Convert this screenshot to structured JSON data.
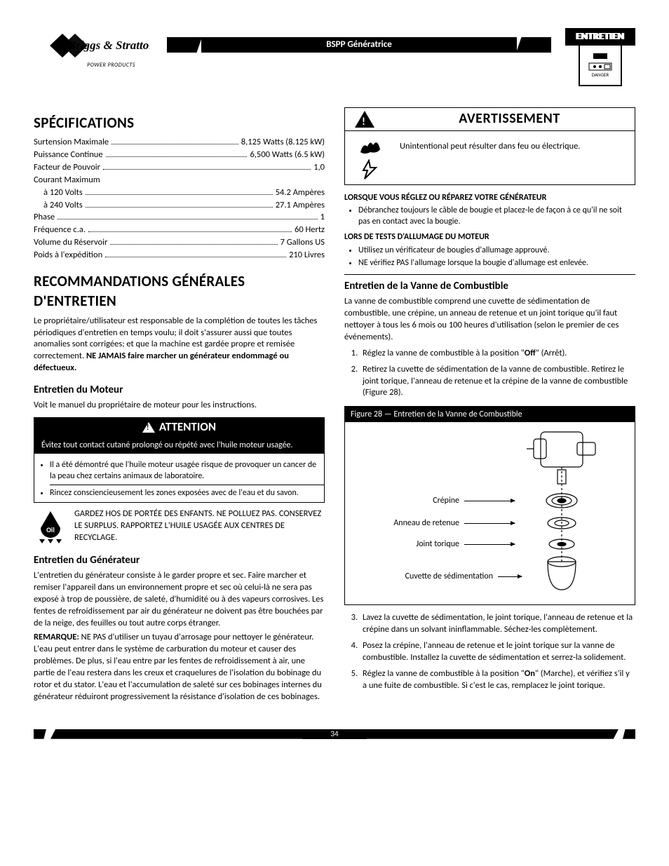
{
  "header": {
    "logo_brand": "Briggs & Stratton",
    "logo_sub": "POWER PRODUCTS",
    "doc_title": "BSPP Génératrice",
    "tab_label": "ENTRETIEN",
    "tab_icon_caption": "DANGER"
  },
  "specs": {
    "heading": "SPÉCIFICATIONS",
    "rows": [
      {
        "label": "Surtension Maximale",
        "value": "8,125 Watts (8.125 kW)",
        "indent": false
      },
      {
        "label": "Puissance Continue",
        "value": "6,500 Watts (6.5 kW)",
        "indent": false
      },
      {
        "label": "Facteur de Pouvoir",
        "value": "1,0",
        "indent": false
      },
      {
        "label": "Courant Maximum",
        "value": "",
        "indent": false,
        "nodots": true
      },
      {
        "label": "à 120 Volts",
        "value": "54.2 Ampères",
        "indent": true
      },
      {
        "label": "à 240 Volts",
        "value": "27.1 Ampères",
        "indent": true
      },
      {
        "label": "Phase",
        "value": "1",
        "indent": false
      },
      {
        "label": "Fréquence c.a.",
        "value": "60 Hertz",
        "indent": false
      },
      {
        "label": "Volume du Réservoir",
        "value": "7 Gallons US",
        "indent": false
      },
      {
        "label": "Poids à l'expédition",
        "value": "210 Livres",
        "indent": false
      }
    ]
  },
  "recs": {
    "heading": "RECOMMANDATIONS GÉNÉRALES D'ENTRETIEN",
    "p1a": "Le propriétaire/utilisateur est responsable de la complétion de toutes les tâches périodiques d'entretien en temps voulu; il doit s'assurer aussi que toutes anomalies sont corrigées; et que la machine est gardée propre et remisée correctement. ",
    "p1b": "NE JAMAIS faire marcher un générateur endommagé ou défectueux."
  },
  "engine": {
    "heading": "Entretien du Moteur",
    "p1": "Voit le manuel du propriétaire de moteur pour les instructions.",
    "attention_title": "ATTENTION",
    "attention_dark": "Évitez tout contact cutané prolongé ou répété avec l'huile moteur usagée.",
    "attention_b1": "Il a été démontré que l'huile moteur usagée risque de provoquer un cancer de la peau chez certains animaux de laboratoire.",
    "attention_b2": "Rincez consciencieusement les zones exposées avec de l'eau et du savon.",
    "oil_text": "GARDEZ HOS DE PORTÉE DES ENFANTS. NE POLLUEZ PAS. CONSERVEZ LE SURPLUS. RAPPORTEZ L'HUILE USAGÉE AUX CENTRES DE RECYCLAGE."
  },
  "gen": {
    "heading": "Entretien du Générateur",
    "p1": "L'entretien du générateur consiste à le garder propre et sec. Faire marcher et remiser l'appareil dans un environnement propre et sec où celui-là ne sera pas exposé à trop de poussière, de saleté, d'humidité ou à des vapeurs corrosives. Les fentes de refroidissement par air du générateur ne doivent pas être bouchées par de la neige, des feuilles ou tout autre corps étranger.",
    "p2_lead": "REMARQUE:",
    "p2": " NE PAS d'utiliser un tuyau d'arrosage pour nettoyer le générateur. L'eau peut entrer dans le système de carburation du moteur et causer des problèmes. De plus, si l'eau entre par les fentes de refroidissement à air, une partie de l'eau restera dans les creux et craquelures de l'isolation du bobinage du rotor et du stator. L'eau et l'accumulation de saleté sur ces bobinages internes du générateur réduiront progressivement la résistance d'isolation de ces bobinages."
  },
  "warn": {
    "title": "AVERTISSEMENT",
    "body": "Unintentional peut résulter dans feu ou électrique.",
    "sub1_title": "LORSQUE VOUS RÉGLEZ OU RÉPAREZ VOTRE GÉNÉRATEUR",
    "sub1_b1": "Débranchez toujours le câble de bougie et placez-le de façon à ce qu'il ne soit pas en contact avec la bougie.",
    "sub2_title": "LORS DE TESTS D'ALLUMAGE DU MOTEUR",
    "sub2_b1": "Utilisez un vérificateur de bougies d'allumage approuvé.",
    "sub2_b2": "NE vérifiez PAS l'allumage lorsque la bougie d'allumage est enlevée."
  },
  "valve": {
    "heading": "Entretien de la Vanne de Combustible",
    "p1": "La vanne de combustible comprend une cuvette de sédimentation de combustible, une crépine, un anneau de retenue et un joint torique qu'il faut nettoyer à tous les 6 mois ou 100 heures d'utilisation (selon le premier de ces événements).",
    "s1a": "Réglez la vanne de combustible à la position \"",
    "s1b": "Off",
    "s1c": "\" (Arrêt).",
    "s2": "Retirez la cuvette de sédimentation de la vanne de combustible. Retirez le joint torique, l'anneau de retenue et la crépine de la vanne de combustible (Figure 28).",
    "fig_title": "Figure 28 — Entretien de la Vanne de Combustible",
    "fig_labels": {
      "crepine": "Crépine",
      "anneau": "Anneau de retenue",
      "joint": "Joint torique",
      "cuvette": "Cuvette de sédimentation"
    },
    "s3": "Lavez la cuvette de sédimentation, le joint torique, l'anneau de retenue et la crépine dans un solvant ininflammable. Séchez-les complètement.",
    "s4": "Posez la crépine, l'anneau de retenue et le joint torique sur la vanne de combustible. Installez la cuvette de sédimentation et serrez-la solidement.",
    "s5a": "Réglez la vanne de combustible à la position \"",
    "s5b": "On",
    "s5c": "\" (Marche), et vérifiez s'il y a une fuite de combustible. Si c'est le cas, remplacez le joint torique."
  },
  "footer": {
    "page": "34"
  }
}
